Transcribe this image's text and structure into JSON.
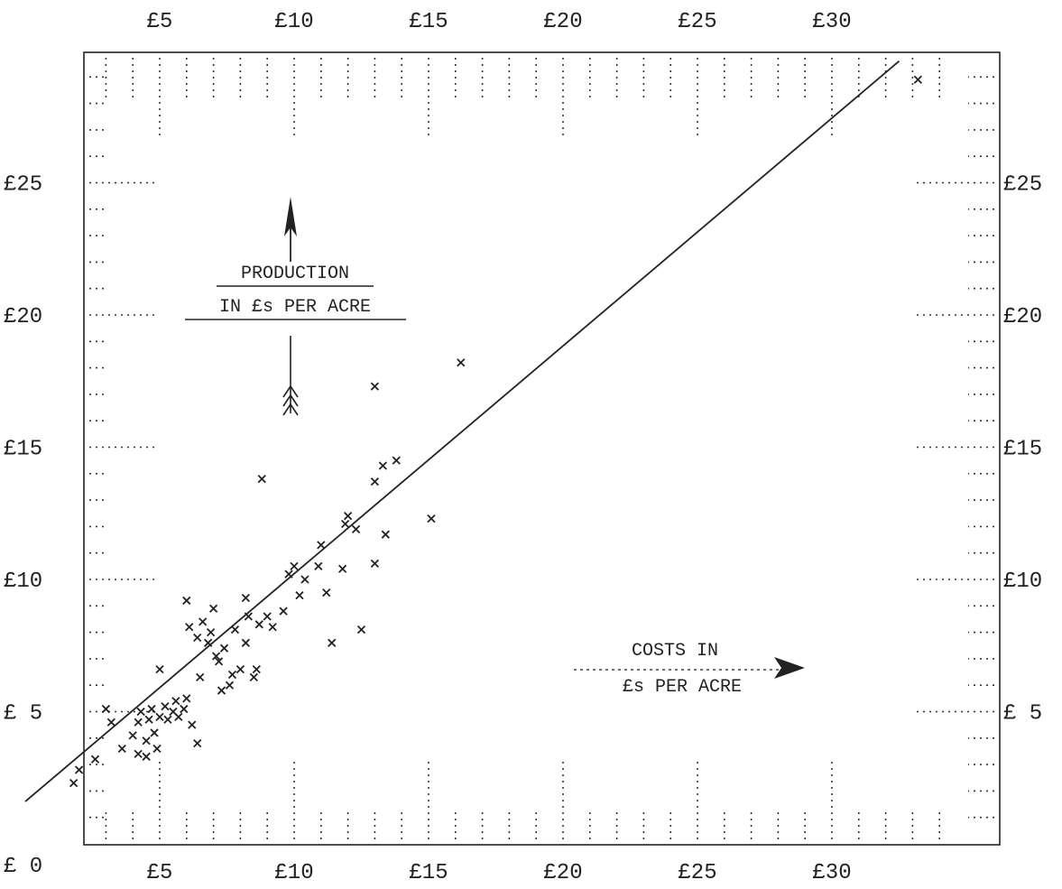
{
  "chart_data": {
    "type": "scatter",
    "xlabel": "COSTS IN £s PER ACRE",
    "ylabel": "PRODUCTION IN £s PER ACRE",
    "ylabel_lines": [
      "PRODUCTION",
      "IN £s PER ACRE"
    ],
    "xlabel_lines": [
      "COSTS IN",
      "£s PER ACRE"
    ],
    "xlim": [
      0,
      35
    ],
    "ylim": [
      0,
      30
    ],
    "grid": true,
    "x_ticks": [
      {
        "value": 5,
        "label": "£5"
      },
      {
        "value": 10,
        "label": "£10"
      },
      {
        "value": 15,
        "label": "£15"
      },
      {
        "value": 20,
        "label": "£20"
      },
      {
        "value": 25,
        "label": "£25"
      },
      {
        "value": 30,
        "label": "£30"
      }
    ],
    "y_ticks": [
      {
        "value": 0,
        "label": "£ 0"
      },
      {
        "value": 5,
        "label": "£ 5"
      },
      {
        "value": 10,
        "label": "£10"
      },
      {
        "value": 15,
        "label": "£15"
      },
      {
        "value": 20,
        "label": "£20"
      },
      {
        "value": 25,
        "label": "£25"
      }
    ],
    "y_ticks_right": [
      {
        "value": 5,
        "label": "£ 5"
      },
      {
        "value": 10,
        "label": "£10"
      },
      {
        "value": 15,
        "label": "£15"
      },
      {
        "value": 20,
        "label": "£20"
      },
      {
        "value": 25,
        "label": "£25"
      }
    ],
    "trend_line": {
      "x": [
        0,
        32.5
      ],
      "y": [
        1.6,
        29.6
      ]
    },
    "points": [
      {
        "x": 1.8,
        "y": 2.3
      },
      {
        "x": 2.0,
        "y": 2.8
      },
      {
        "x": 2.6,
        "y": 3.2
      },
      {
        "x": 3.0,
        "y": 5.1
      },
      {
        "x": 3.2,
        "y": 4.6
      },
      {
        "x": 3.6,
        "y": 3.6
      },
      {
        "x": 4.0,
        "y": 4.1
      },
      {
        "x": 4.2,
        "y": 3.4
      },
      {
        "x": 4.2,
        "y": 4.6
      },
      {
        "x": 4.3,
        "y": 5.0
      },
      {
        "x": 4.5,
        "y": 3.9
      },
      {
        "x": 4.5,
        "y": 3.3
      },
      {
        "x": 4.6,
        "y": 4.7
      },
      {
        "x": 4.7,
        "y": 5.1
      },
      {
        "x": 4.8,
        "y": 4.2
      },
      {
        "x": 4.9,
        "y": 3.6
      },
      {
        "x": 5.0,
        "y": 4.8
      },
      {
        "x": 5.0,
        "y": 6.6
      },
      {
        "x": 5.2,
        "y": 5.2
      },
      {
        "x": 5.3,
        "y": 4.7
      },
      {
        "x": 5.5,
        "y": 5.0
      },
      {
        "x": 5.6,
        "y": 5.4
      },
      {
        "x": 5.7,
        "y": 4.8
      },
      {
        "x": 5.9,
        "y": 5.1
      },
      {
        "x": 6.0,
        "y": 5.5
      },
      {
        "x": 6.0,
        "y": 9.2
      },
      {
        "x": 6.1,
        "y": 8.2
      },
      {
        "x": 6.2,
        "y": 4.5
      },
      {
        "x": 6.4,
        "y": 3.8
      },
      {
        "x": 6.4,
        "y": 7.8
      },
      {
        "x": 6.5,
        "y": 6.3
      },
      {
        "x": 6.6,
        "y": 8.4
      },
      {
        "x": 6.8,
        "y": 7.6
      },
      {
        "x": 6.9,
        "y": 8.0
      },
      {
        "x": 7.0,
        "y": 8.9
      },
      {
        "x": 7.1,
        "y": 7.1
      },
      {
        "x": 7.2,
        "y": 6.9
      },
      {
        "x": 7.3,
        "y": 5.8
      },
      {
        "x": 7.4,
        "y": 7.4
      },
      {
        "x": 7.6,
        "y": 6.0
      },
      {
        "x": 7.7,
        "y": 6.4
      },
      {
        "x": 7.8,
        "y": 8.1
      },
      {
        "x": 8.0,
        "y": 6.6
      },
      {
        "x": 8.2,
        "y": 7.6
      },
      {
        "x": 8.2,
        "y": 9.3
      },
      {
        "x": 8.3,
        "y": 8.6
      },
      {
        "x": 8.5,
        "y": 6.3
      },
      {
        "x": 8.6,
        "y": 6.6
      },
      {
        "x": 8.7,
        "y": 8.3
      },
      {
        "x": 8.8,
        "y": 13.8
      },
      {
        "x": 9.0,
        "y": 8.6
      },
      {
        "x": 9.2,
        "y": 8.2
      },
      {
        "x": 9.6,
        "y": 8.8
      },
      {
        "x": 9.8,
        "y": 10.2
      },
      {
        "x": 10.0,
        "y": 10.5
      },
      {
        "x": 10.2,
        "y": 9.4
      },
      {
        "x": 10.4,
        "y": 10.0
      },
      {
        "x": 10.9,
        "y": 10.5
      },
      {
        "x": 11.0,
        "y": 11.3
      },
      {
        "x": 11.2,
        "y": 9.5
      },
      {
        "x": 11.4,
        "y": 7.6
      },
      {
        "x": 11.8,
        "y": 10.4
      },
      {
        "x": 11.9,
        "y": 12.1
      },
      {
        "x": 12.0,
        "y": 12.4
      },
      {
        "x": 12.3,
        "y": 11.9
      },
      {
        "x": 12.5,
        "y": 8.1
      },
      {
        "x": 13.0,
        "y": 10.6
      },
      {
        "x": 13.0,
        "y": 13.7
      },
      {
        "x": 13.0,
        "y": 17.3
      },
      {
        "x": 13.3,
        "y": 14.3
      },
      {
        "x": 13.4,
        "y": 11.7
      },
      {
        "x": 13.8,
        "y": 14.5
      },
      {
        "x": 15.1,
        "y": 12.3
      },
      {
        "x": 16.2,
        "y": 18.2
      },
      {
        "x": 33.2,
        "y": 28.9
      }
    ]
  }
}
